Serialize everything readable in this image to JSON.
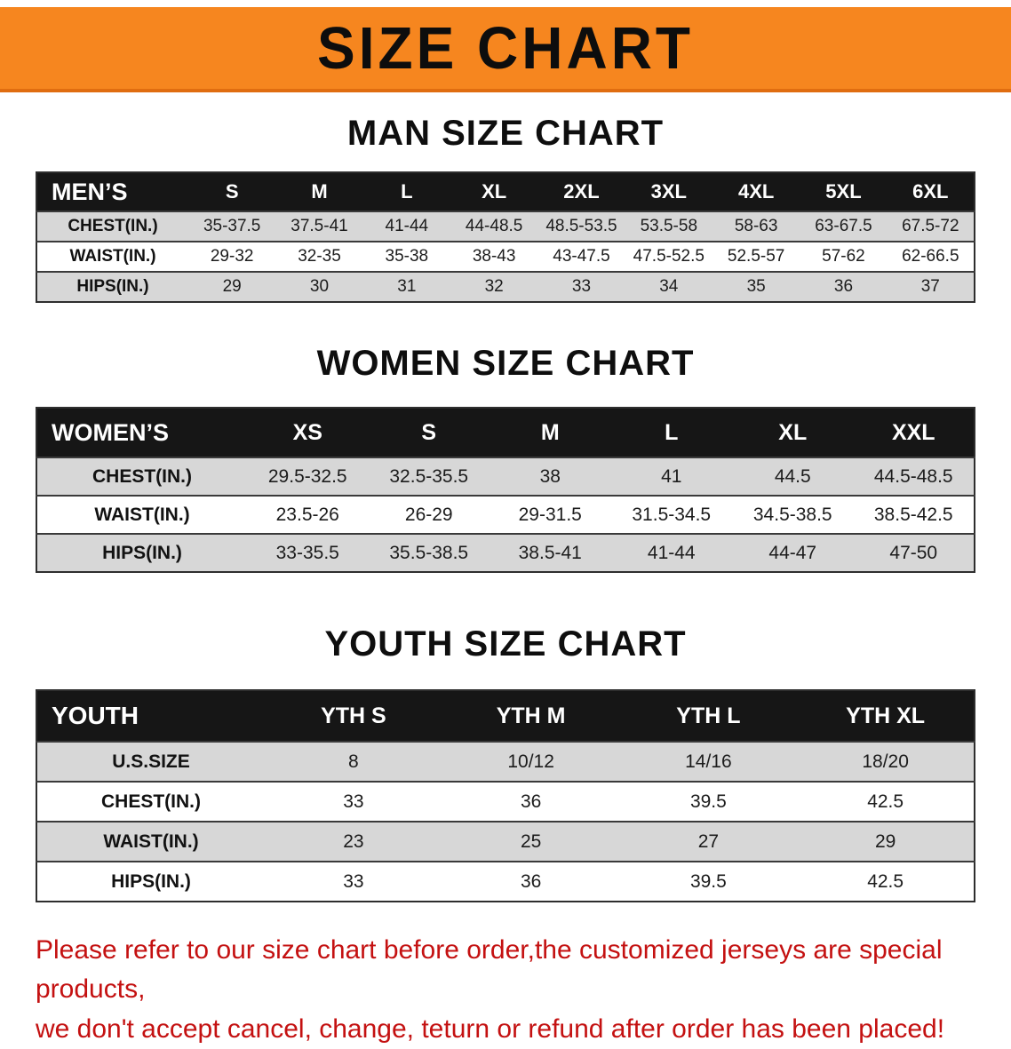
{
  "banner": {
    "title": "SIZE CHART"
  },
  "colors": {
    "banner_bg": "#f6861f",
    "table_header_bg": "#161616",
    "row_stripe_gray": "#d7d7d7",
    "disclaimer_red": "#c41111"
  },
  "men": {
    "heading": "MAN SIZE CHART",
    "header": [
      "MEN’S",
      "S",
      "M",
      "L",
      "XL",
      "2XL",
      "3XL",
      "4XL",
      "5XL",
      "6XL"
    ],
    "rows": [
      {
        "label": "CHEST(IN.)",
        "values": [
          "35-37.5",
          "37.5-41",
          "41-44",
          "44-48.5",
          "48.5-53.5",
          "53.5-58",
          "58-63",
          "63-67.5",
          "67.5-72"
        ]
      },
      {
        "label": "WAIST(IN.)",
        "values": [
          "29-32",
          "32-35",
          "35-38",
          "38-43",
          "43-47.5",
          "47.5-52.5",
          "52.5-57",
          "57-62",
          "62-66.5"
        ]
      },
      {
        "label": "HIPS(IN.)",
        "values": [
          "29",
          "30",
          "31",
          "32",
          "33",
          "34",
          "35",
          "36",
          "37"
        ]
      }
    ]
  },
  "women": {
    "heading": "WOMEN SIZE CHART",
    "header": [
      "WOMEN’S",
      "XS",
      "S",
      "M",
      "L",
      "XL",
      "XXL"
    ],
    "rows": [
      {
        "label": "CHEST(IN.)",
        "values": [
          "29.5-32.5",
          "32.5-35.5",
          "38",
          "41",
          "44.5",
          "44.5-48.5"
        ]
      },
      {
        "label": "WAIST(IN.)",
        "values": [
          "23.5-26",
          "26-29",
          "29-31.5",
          "31.5-34.5",
          "34.5-38.5",
          "38.5-42.5"
        ]
      },
      {
        "label": "HIPS(IN.)",
        "values": [
          "33-35.5",
          "35.5-38.5",
          "38.5-41",
          "41-44",
          "44-47",
          "47-50"
        ]
      }
    ]
  },
  "youth": {
    "heading": "YOUTH SIZE CHART",
    "header": [
      "YOUTH",
      "YTH S",
      "YTH M",
      "YTH L",
      "YTH XL"
    ],
    "rows": [
      {
        "label": "U.S.SIZE",
        "values": [
          "8",
          "10/12",
          "14/16",
          "18/20"
        ]
      },
      {
        "label": "CHEST(IN.)",
        "values": [
          "33",
          "36",
          "39.5",
          "42.5"
        ]
      },
      {
        "label": "WAIST(IN.)",
        "values": [
          "23",
          "25",
          "27",
          "29"
        ]
      },
      {
        "label": "HIPS(IN.)",
        "values": [
          "33",
          "36",
          "39.5",
          "42.5"
        ]
      }
    ]
  },
  "disclaimer": {
    "line1": "Please refer to our size chart before order,the customized jerseys are special products,",
    "line2": "we don't accept cancel, change, teturn or refund after order has been placed!"
  }
}
